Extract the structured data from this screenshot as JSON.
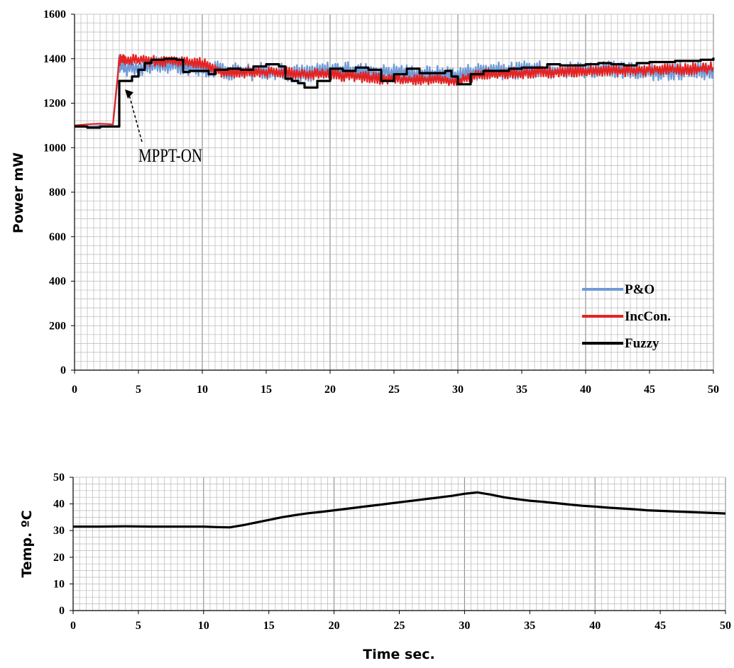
{
  "chart_data": [
    {
      "type": "line",
      "title": "",
      "xlabel": "",
      "ylabel": "Power  mW",
      "xlim": [
        0,
        50
      ],
      "ylim": [
        0,
        1600
      ],
      "xticks": [
        "0",
        "5",
        "10",
        "15",
        "20",
        "25",
        "30",
        "35",
        "40",
        "45",
        "50"
      ],
      "yticks": [
        "0",
        "200",
        "400",
        "600",
        "800",
        "1000",
        "1200",
        "1400",
        "1600"
      ],
      "grid": true,
      "legend": "bottom-right",
      "annotation": {
        "text": "MPPT-ON",
        "x": 3.5,
        "y": 1300
      },
      "series": [
        {
          "name": "P&O",
          "color": "#6f9bd8",
          "x": [
            0,
            1,
            2,
            3,
            3.5,
            4,
            5,
            6,
            7,
            8,
            9,
            10,
            11,
            12,
            13,
            14,
            15,
            16,
            17,
            18,
            19,
            20,
            21,
            22,
            23,
            24,
            25,
            26,
            27,
            28,
            29,
            30,
            31,
            32,
            33,
            34,
            35,
            36,
            37,
            38,
            39,
            40,
            41,
            42,
            43,
            44,
            45,
            46,
            47,
            48,
            49,
            50
          ],
          "y": [
            1095,
            1095,
            1098,
            1098,
            1380,
            1360,
            1360,
            1365,
            1370,
            1370,
            1365,
            1360,
            1350,
            1345,
            1345,
            1340,
            1345,
            1340,
            1335,
            1335,
            1340,
            1350,
            1345,
            1345,
            1340,
            1335,
            1340,
            1335,
            1330,
            1330,
            1330,
            1325,
            1340,
            1345,
            1345,
            1345,
            1350,
            1350,
            1350,
            1345,
            1350,
            1350,
            1345,
            1350,
            1345,
            1345,
            1340,
            1340,
            1345,
            1345,
            1345,
            1345
          ],
          "spread": 45
        },
        {
          "name": "IncCon.",
          "color": "#e52222",
          "x": [
            0,
            1,
            2,
            3,
            3.5,
            4,
            5,
            6,
            7,
            8,
            9,
            10,
            11,
            12,
            13,
            14,
            15,
            16,
            17,
            18,
            19,
            20,
            21,
            22,
            23,
            24,
            25,
            26,
            27,
            28,
            29,
            30,
            31,
            32,
            33,
            34,
            35,
            36,
            37,
            38,
            39,
            40,
            41,
            42,
            43,
            44,
            45,
            46,
            47,
            48,
            49,
            50
          ],
          "y": [
            1100,
            1105,
            1108,
            1105,
            1395,
            1395,
            1395,
            1390,
            1390,
            1390,
            1385,
            1380,
            1345,
            1340,
            1340,
            1340,
            1340,
            1340,
            1335,
            1330,
            1330,
            1330,
            1325,
            1320,
            1315,
            1310,
            1310,
            1305,
            1305,
            1305,
            1300,
            1295,
            1320,
            1330,
            1330,
            1335,
            1335,
            1340,
            1340,
            1340,
            1340,
            1345,
            1345,
            1345,
            1345,
            1350,
            1350,
            1350,
            1350,
            1355,
            1355,
            1360
          ],
          "spread": 30
        },
        {
          "name": "Fuzzy",
          "color": "#000000",
          "x": [
            0,
            1,
            2,
            3,
            3.4,
            3.5,
            4,
            4.5,
            5,
            5.5,
            6,
            7,
            8,
            8.5,
            9,
            10,
            10.5,
            11,
            12,
            13,
            14,
            15,
            16,
            16.5,
            17,
            17.5,
            18,
            19,
            20,
            21,
            22,
            23,
            24,
            25,
            26,
            27,
            28,
            29,
            29.5,
            30,
            31,
            32,
            33,
            34,
            35,
            36,
            37,
            38,
            39,
            40,
            41,
            42,
            43,
            44,
            45,
            46,
            47,
            48,
            49,
            50
          ],
          "y": [
            1095,
            1090,
            1095,
            1095,
            1095,
            1300,
            1300,
            1320,
            1350,
            1380,
            1395,
            1400,
            1395,
            1340,
            1345,
            1345,
            1330,
            1350,
            1355,
            1350,
            1365,
            1375,
            1365,
            1310,
            1300,
            1290,
            1270,
            1300,
            1355,
            1345,
            1360,
            1350,
            1300,
            1330,
            1355,
            1335,
            1335,
            1345,
            1320,
            1285,
            1330,
            1345,
            1345,
            1355,
            1360,
            1360,
            1375,
            1370,
            1370,
            1375,
            1380,
            1375,
            1370,
            1380,
            1385,
            1385,
            1390,
            1390,
            1395,
            1405
          ]
        }
      ]
    },
    {
      "type": "line",
      "title": "",
      "xlabel": "Time  sec.",
      "ylabel": "Temp. ºC",
      "xlim": [
        0,
        50
      ],
      "ylim": [
        0,
        50
      ],
      "xticks": [
        "0",
        "5",
        "10",
        "15",
        "20",
        "25",
        "30",
        "35",
        "40",
        "45",
        "50"
      ],
      "yticks": [
        "0",
        "10",
        "20",
        "30",
        "40",
        "50"
      ],
      "grid": true,
      "series": [
        {
          "color": "#000000",
          "x": [
            0,
            2,
            4,
            6,
            8,
            10,
            11,
            12,
            13,
            14,
            15,
            16,
            17,
            18,
            19,
            20,
            21,
            22,
            23,
            24,
            25,
            26,
            27,
            28,
            29,
            30,
            31,
            32,
            33,
            34,
            35,
            36,
            37,
            38,
            39,
            40,
            41,
            42,
            43,
            44,
            45,
            46,
            47,
            48,
            49,
            50
          ],
          "y": [
            31.5,
            31.5,
            31.6,
            31.5,
            31.5,
            31.5,
            31.3,
            31.2,
            32.0,
            33.0,
            34.0,
            35.0,
            35.8,
            36.5,
            37.0,
            37.6,
            38.2,
            38.8,
            39.4,
            40.0,
            40.6,
            41.2,
            41.8,
            42.4,
            43.0,
            43.8,
            44.3,
            43.5,
            42.5,
            41.8,
            41.2,
            40.8,
            40.3,
            39.8,
            39.3,
            39.0,
            38.6,
            38.3,
            38.0,
            37.6,
            37.4,
            37.2,
            37.0,
            36.8,
            36.6,
            36.4
          ]
        }
      ]
    }
  ]
}
